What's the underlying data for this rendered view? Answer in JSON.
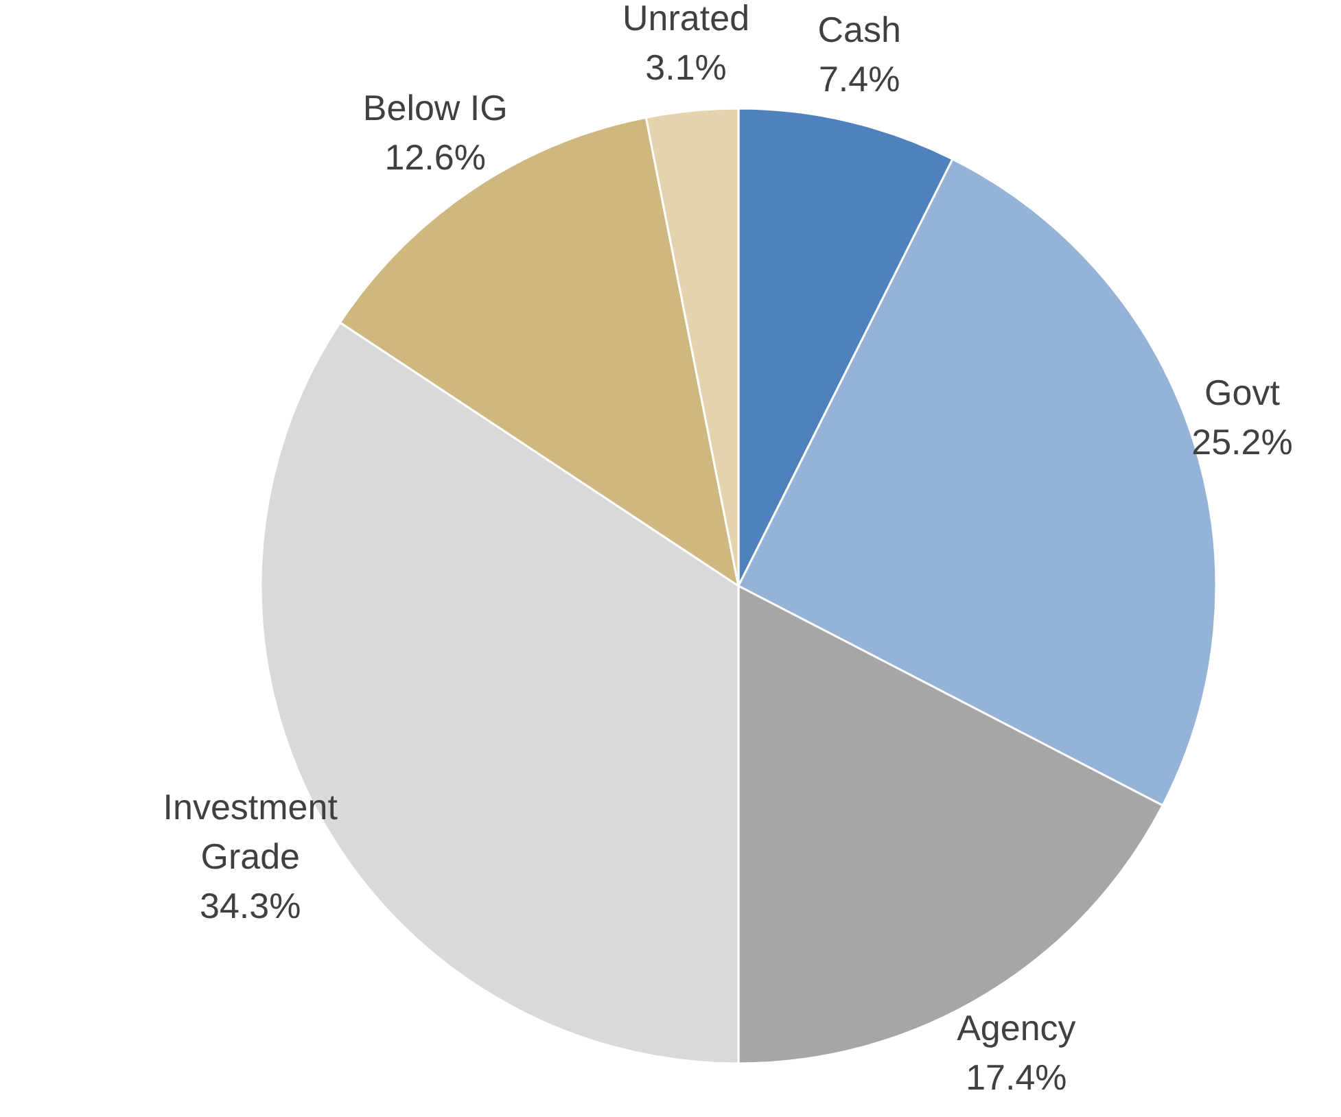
{
  "chart_data": {
    "type": "pie",
    "categories": [
      "Cash",
      "Govt",
      "Agency",
      "Investment Grade",
      "Below IG",
      "Unrated"
    ],
    "values": [
      7.4,
      25.2,
      17.4,
      34.3,
      12.6,
      3.1
    ],
    "value_labels": [
      "7.4%",
      "25.2%",
      "17.4%",
      "34.3%",
      "12.6%",
      "3.1%"
    ],
    "colors": [
      "#4f81bd",
      "#95b3d7",
      "#a6a6a6",
      "#d9d9d9",
      "#cfb87f",
      "#e3d4ae"
    ]
  }
}
